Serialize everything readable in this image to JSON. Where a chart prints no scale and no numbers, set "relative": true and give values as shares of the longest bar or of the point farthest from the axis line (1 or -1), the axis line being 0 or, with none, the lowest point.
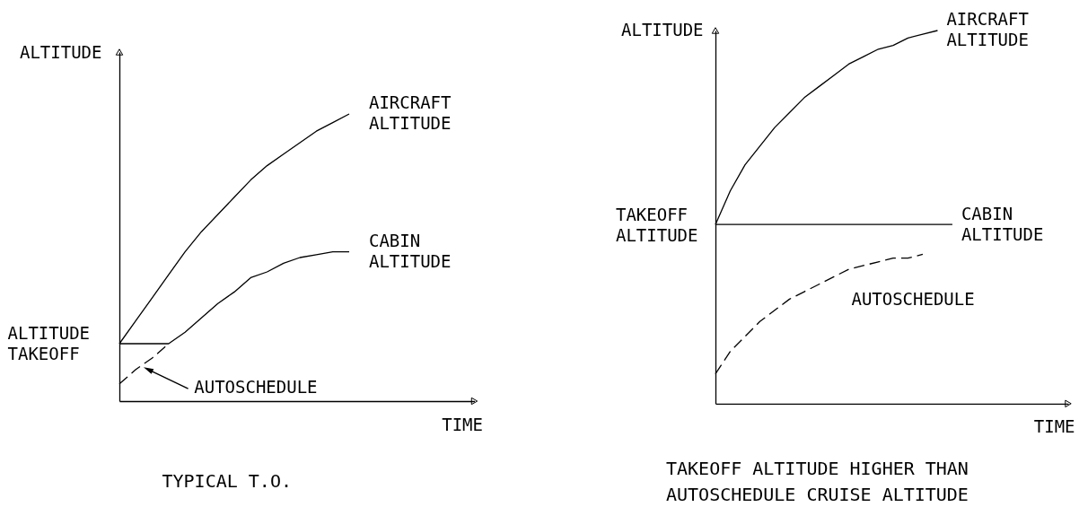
{
  "chart_data": [
    {
      "type": "line",
      "title": "TYPICAL T.O.",
      "xlabel": "TIME",
      "ylabel": "ALTITUDE",
      "relative": true,
      "categories": [
        null,
        null,
        null,
        null,
        null,
        null,
        null,
        null,
        null,
        null,
        null,
        null,
        null,
        null,
        null
      ],
      "series": [
        {
          "name": "AIRCRAFT ALTITUDE",
          "color": "#000000",
          "values": [
            0.2,
            0.28,
            0.36,
            0.44,
            0.52,
            0.59,
            0.65,
            0.71,
            0.77,
            0.82,
            0.86,
            0.9,
            0.94,
            0.97,
            1
          ]
        },
        {
          "name": "CABIN ALTITUDE",
          "color": "#000000",
          "values": [
            0.2,
            0.2,
            0.2,
            0.2,
            0.24,
            0.29,
            0.34,
            0.38,
            0.43,
            0.45,
            0.48,
            0.5,
            0.51,
            0.52,
            0.52
          ]
        },
        {
          "name": "AUTOSCHEDULE",
          "color": "#000000",
          "line_style": "dashed",
          "values": [
            0.06,
            0.11,
            0.15,
            0.2,
            null,
            null,
            null,
            null,
            null,
            null,
            null,
            null,
            null,
            null,
            null
          ]
        }
      ],
      "annotations": [
        "ALTITUDE TAKEOFF"
      ]
    },
    {
      "type": "line",
      "title": "TAKEOFF ALTITUDE HIGHER THAN AUTOSCHEDULE CRUISE ALTITUDE",
      "xlabel": "TIME",
      "ylabel": "ALTITUDE",
      "relative": true,
      "categories": [
        null,
        null,
        null,
        null,
        null,
        null,
        null,
        null,
        null,
        null,
        null,
        null,
        null,
        null,
        null,
        null,
        null
      ],
      "series": [
        {
          "name": "AIRCRAFT ALTITUDE",
          "color": "#000000",
          "values": [
            0.48,
            0.57,
            0.64,
            0.69,
            0.74,
            0.78,
            0.82,
            0.85,
            0.88,
            0.91,
            0.93,
            0.95,
            0.96,
            0.98,
            0.99,
            1,
            null
          ]
        },
        {
          "name": "CABIN ALTITUDE",
          "color": "#000000",
          "values": [
            0.48,
            0.48,
            0.48,
            0.48,
            0.48,
            0.48,
            0.48,
            0.48,
            0.48,
            0.48,
            0.48,
            0.48,
            0.48,
            0.48,
            0.48,
            0.48,
            0.48
          ]
        },
        {
          "name": "AUTOSCHEDULE",
          "color": "#000000",
          "line_style": "dashed",
          "values": [
            0.08,
            0.14,
            0.18,
            0.22,
            0.25,
            0.28,
            0.3,
            0.32,
            0.34,
            0.36,
            0.37,
            0.38,
            0.39,
            0.39,
            0.4,
            null,
            null
          ]
        }
      ],
      "annotations": [
        "TAKEOFF ALTITUDE"
      ]
    }
  ]
}
